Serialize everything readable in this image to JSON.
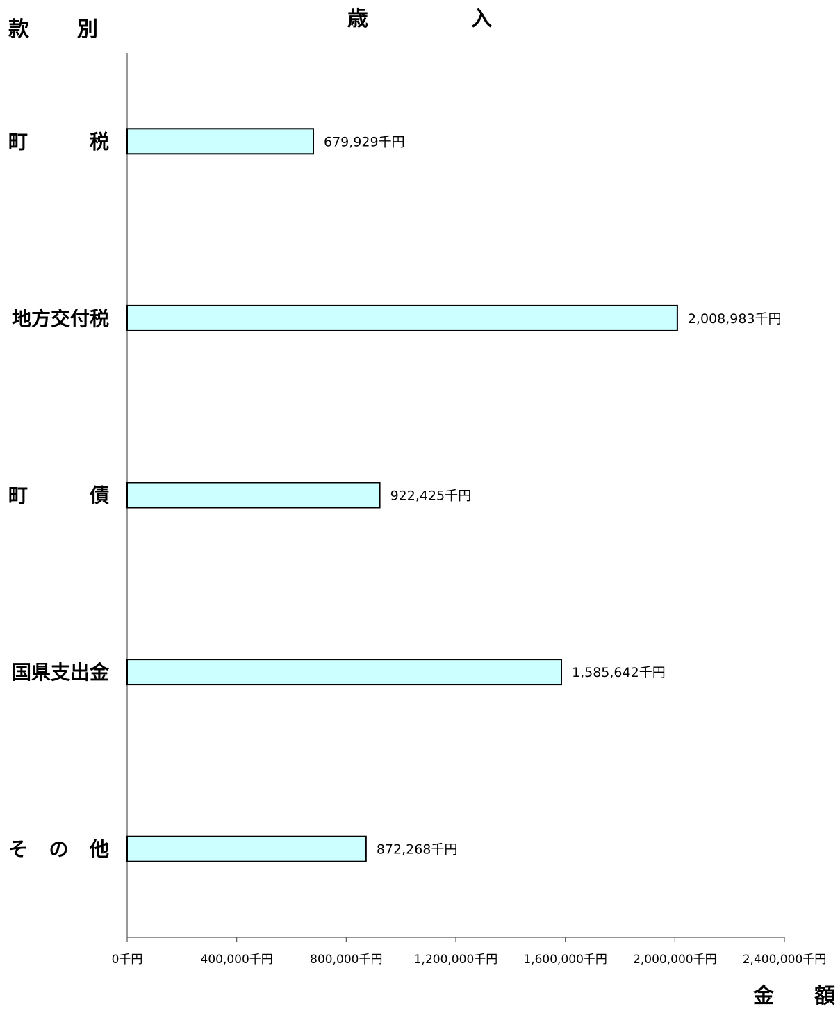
{
  "chart_data": {
    "type": "bar",
    "orientation": "horizontal",
    "title_chars": [
      "歳",
      "入"
    ],
    "ylabel_chars": [
      "款",
      "別"
    ],
    "xlabel_chars": [
      "金",
      "額"
    ],
    "categories": [
      [
        "町",
        "税"
      ],
      [
        "地方交付税"
      ],
      [
        "町",
        "債"
      ],
      [
        "国県支出金"
      ],
      [
        "そ",
        "の",
        "他"
      ]
    ],
    "values": [
      679929,
      2008983,
      922425,
      1585642,
      872268
    ],
    "data_labels": [
      "679,929千円",
      "2,008,983千円",
      "922,425千円",
      "1,585,642千円",
      "872,268千円"
    ],
    "xlim": [
      0,
      2400000
    ],
    "x_ticks": [
      0,
      400000,
      800000,
      1200000,
      1600000,
      2000000,
      2400000
    ],
    "x_tick_labels": [
      "0千円",
      "400,000千円",
      "800,000千円",
      "1,200,000千円",
      "1,600,000千円",
      "2,000,000千円",
      "2,400,000千円"
    ],
    "bar_color": "#ccffff",
    "bar_edge_color": "#000000",
    "grid": false,
    "legend": "none"
  }
}
